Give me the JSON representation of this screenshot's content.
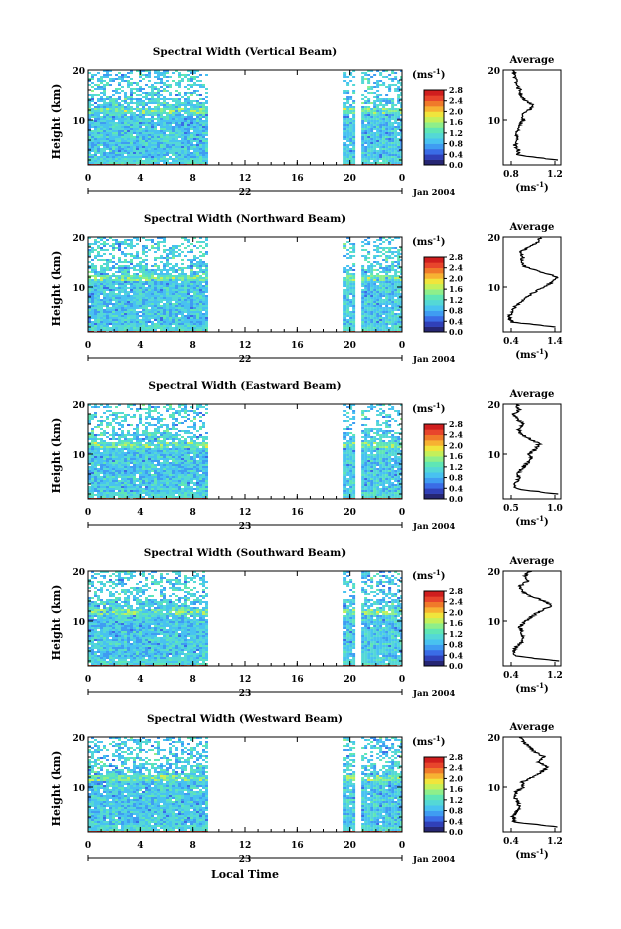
{
  "figure": {
    "xlabel": "Local Time",
    "colorbar_unit": "(ms",
    "colorbar_unit_sup": "-1",
    "colorbar_unit_close": ")",
    "average_title": "Average",
    "average_xlabel": "(ms",
    "average_xlabel_sup": "-1",
    "average_xlabel_close": ")",
    "ylabel": "Height (km)",
    "date_label": "Jan 2004",
    "colors": {
      "colormap": [
        "#262673",
        "#3040b8",
        "#3a6ce6",
        "#3f9cf2",
        "#48c2f0",
        "#54d8d6",
        "#5fe6b5",
        "#8eef8a",
        "#c4f05a",
        "#f0e53c",
        "#f7b232",
        "#f07a2a",
        "#e8452c",
        "#d01e1e"
      ]
    }
  },
  "chart_data": [
    {
      "type": "heatmap",
      "title": "Spectral Width (Vertical Beam)",
      "xlabel": "",
      "ylabel": "Height (km)",
      "x_tick_labels": [
        "0",
        "4",
        "8",
        "12",
        "16",
        "20",
        "0"
      ],
      "day_label": "22",
      "y_tick_labels": [
        "10",
        "20"
      ],
      "xlim": [
        0,
        24
      ],
      "ylim": [
        1,
        20
      ],
      "data_gap": [
        9,
        19.5
      ],
      "colorbar": {
        "ticks": [
          "0.0",
          "0.4",
          "0.8",
          "1.2",
          "1.6",
          "2.0",
          "2.4",
          "2.8"
        ],
        "range": [
          0,
          2.8
        ]
      },
      "average": {
        "xlim": [
          0.4,
          1.3
        ],
        "x_tick_labels": [
          "0.8",
          "1.2"
        ],
        "y_tick_labels": [
          "10",
          "20"
        ],
        "height_km": [
          2,
          3,
          4,
          5,
          6,
          7,
          8,
          9,
          10,
          11,
          12,
          13,
          14,
          15,
          16,
          17,
          18,
          19,
          20
        ],
        "values": [
          1.25,
          0.62,
          0.65,
          0.58,
          0.63,
          0.6,
          0.64,
          0.66,
          0.72,
          0.7,
          0.8,
          0.86,
          0.74,
          0.68,
          0.66,
          0.6,
          0.62,
          0.57,
          0.55
        ]
      }
    },
    {
      "type": "heatmap",
      "title": "Spectral Width (Northward Beam)",
      "xlabel": "",
      "ylabel": "Height (km)",
      "x_tick_labels": [
        "0",
        "4",
        "8",
        "12",
        "16",
        "20",
        "0"
      ],
      "day_label": "22",
      "y_tick_labels": [
        "10",
        "20"
      ],
      "xlim": [
        0,
        24
      ],
      "ylim": [
        1,
        20
      ],
      "data_gap": [
        9,
        19.5
      ],
      "colorbar": {
        "ticks": [
          "0.0",
          "0.4",
          "0.8",
          "1.2",
          "1.6",
          "2.0",
          "2.4",
          "2.8"
        ],
        "range": [
          0,
          2.8
        ]
      },
      "average": {
        "xlim": [
          0.4,
          1.4
        ],
        "x_tick_labels": [
          "0.4",
          "1.4"
        ],
        "y_tick_labels": [
          "10",
          "20"
        ],
        "height_km": [
          2,
          3,
          4,
          5,
          6,
          7,
          8,
          9,
          10,
          11,
          12,
          13,
          14,
          15,
          16,
          17,
          18,
          19,
          20
        ],
        "values": [
          1.3,
          0.55,
          0.5,
          0.55,
          0.6,
          0.7,
          0.8,
          0.95,
          1.1,
          1.25,
          1.35,
          1.05,
          0.8,
          0.7,
          0.75,
          0.7,
          0.85,
          1.0,
          1.05
        ]
      }
    },
    {
      "type": "heatmap",
      "title": "Spectral Width (Eastward Beam)",
      "xlabel": "",
      "ylabel": "Height (km)",
      "x_tick_labels": [
        "0",
        "4",
        "8",
        "12",
        "16",
        "20",
        "0"
      ],
      "day_label": "23",
      "y_tick_labels": [
        "10",
        "20"
      ],
      "xlim": [
        0,
        24
      ],
      "ylim": [
        1,
        20
      ],
      "data_gap": [
        9,
        19.5
      ],
      "colorbar": {
        "ticks": [
          "0.0",
          "0.4",
          "0.8",
          "1.2",
          "1.6",
          "2.0",
          "2.4",
          "2.8"
        ],
        "range": [
          0,
          2.8
        ]
      },
      "average": {
        "xlim": [
          0.4,
          1.2
        ],
        "x_tick_labels": [
          "0.5",
          "1.0"
        ],
        "y_tick_labels": [
          "10",
          "20"
        ],
        "height_km": [
          2,
          3,
          4,
          5,
          6,
          7,
          8,
          9,
          10,
          11,
          12,
          13,
          14,
          15,
          16,
          17,
          18,
          19,
          20
        ],
        "values": [
          1.15,
          0.6,
          0.55,
          0.62,
          0.58,
          0.65,
          0.72,
          0.8,
          0.76,
          0.85,
          0.9,
          0.78,
          0.65,
          0.6,
          0.68,
          0.6,
          0.55,
          0.62,
          0.58
        ]
      }
    },
    {
      "type": "heatmap",
      "title": "Spectral Width (Southward Beam)",
      "xlabel": "",
      "ylabel": "Height (km)",
      "x_tick_labels": [
        "0",
        "4",
        "8",
        "12",
        "16",
        "20",
        "0"
      ],
      "day_label": "23",
      "y_tick_labels": [
        "10",
        "20"
      ],
      "xlim": [
        0,
        24
      ],
      "ylim": [
        1,
        20
      ],
      "data_gap": [
        9,
        19.5
      ],
      "colorbar": {
        "ticks": [
          "0.0",
          "0.4",
          "0.8",
          "1.2",
          "1.6",
          "2.0",
          "2.4",
          "2.8"
        ],
        "range": [
          0,
          2.8
        ]
      },
      "average": {
        "xlim": [
          0.4,
          1.3
        ],
        "x_tick_labels": [
          "0.4",
          "1.2"
        ],
        "y_tick_labels": [
          "10",
          "20"
        ],
        "height_km": [
          2,
          3,
          4,
          5,
          6,
          7,
          8,
          9,
          10,
          11,
          12,
          13,
          14,
          15,
          16,
          17,
          18,
          19,
          20
        ],
        "values": [
          1.25,
          0.58,
          0.55,
          0.62,
          0.7,
          0.72,
          0.68,
          0.66,
          0.75,
          0.85,
          0.98,
          1.15,
          1.05,
          0.82,
          0.7,
          0.66,
          0.78,
          0.75,
          0.8
        ]
      }
    },
    {
      "type": "heatmap",
      "title": "Spectral Width (Westward Beam)",
      "xlabel": "Local Time",
      "ylabel": "Height (km)",
      "x_tick_labels": [
        "0",
        "4",
        "8",
        "12",
        "16",
        "20",
        "0"
      ],
      "day_label": "23",
      "y_tick_labels": [
        "10",
        "20"
      ],
      "xlim": [
        0,
        24
      ],
      "ylim": [
        1,
        20
      ],
      "data_gap": [
        9,
        19.5
      ],
      "colorbar": {
        "ticks": [
          "0.0",
          "0.4",
          "0.8",
          "1.2",
          "1.6",
          "2.0",
          "2.4",
          "2.8"
        ],
        "range": [
          0,
          2.8
        ]
      },
      "average": {
        "xlim": [
          0.4,
          1.3
        ],
        "x_tick_labels": [
          "0.4",
          "1.2"
        ],
        "y_tick_labels": [
          "10",
          "20"
        ],
        "height_km": [
          2,
          3,
          4,
          5,
          6,
          7,
          8,
          9,
          10,
          11,
          12,
          13,
          14,
          15,
          16,
          17,
          18,
          19,
          20
        ],
        "values": [
          1.25,
          0.58,
          0.55,
          0.6,
          0.66,
          0.62,
          0.58,
          0.6,
          0.72,
          0.7,
          0.85,
          1.0,
          1.1,
          0.95,
          1.05,
          0.9,
          0.8,
          0.72,
          0.65
        ]
      }
    }
  ]
}
